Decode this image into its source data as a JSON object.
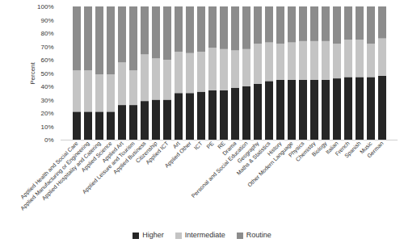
{
  "chart_data": {
    "type": "bar",
    "stacked": true,
    "legend": "bottom",
    "grid": false,
    "y_label": "Percent",
    "categories": [
      "Applied Health and Social Care",
      "Applied Manufacturing or Engineering",
      "Applied Hospitality and Catering",
      "Applied Science",
      "Applied Art",
      "Applied Leisure and Tourism",
      "Applied Business",
      "Citizenship",
      "Applied ICT",
      "Art",
      "Applied Other",
      "ICT",
      "PE",
      "RE",
      "Drama",
      "Personal and Social Education",
      "Geography",
      "Maths & Statistics",
      "History",
      "Other Modern Language",
      "Physics",
      "Chemistry",
      "Biology",
      "Italian",
      "French",
      "Spanish",
      "Music",
      "German"
    ],
    "series": [
      {
        "name": "Higher",
        "color": "#262626",
        "values": [
          21,
          21,
          21,
          21,
          26,
          26,
          29,
          30,
          30,
          35,
          35,
          36,
          37,
          37,
          39,
          40,
          42,
          44,
          45,
          45,
          45,
          45,
          45,
          46,
          47,
          47,
          47,
          48
        ]
      },
      {
        "name": "Intermediate",
        "color": "#c4c4c4",
        "values": [
          31,
          31,
          28,
          28,
          32,
          26,
          35,
          31,
          30,
          31,
          30,
          30,
          32,
          31,
          28,
          28,
          30,
          29,
          27,
          28,
          29,
          29,
          29,
          26,
          28,
          28,
          25,
          28
        ]
      },
      {
        "name": "Routine",
        "color": "#8c8c8c",
        "values": [
          48,
          48,
          51,
          51,
          42,
          48,
          36,
          39,
          40,
          34,
          35,
          34,
          31,
          32,
          33,
          32,
          28,
          27,
          28,
          27,
          26,
          26,
          26,
          28,
          25,
          25,
          28,
          24
        ]
      }
    ],
    "ylim": [
      0,
      100
    ],
    "yticks": [
      {
        "value": 0,
        "label": "0%"
      },
      {
        "value": 10,
        "label": "10%"
      },
      {
        "value": 20,
        "label": "20%"
      },
      {
        "value": 30,
        "label": "30%"
      },
      {
        "value": 40,
        "label": "40%"
      },
      {
        "value": 50,
        "label": "50%"
      },
      {
        "value": 60,
        "label": "60%"
      },
      {
        "value": 70,
        "label": "70%"
      },
      {
        "value": 80,
        "label": "80%"
      },
      {
        "value": 90,
        "label": "90%"
      },
      {
        "value": 100,
        "label": "100%"
      }
    ]
  }
}
